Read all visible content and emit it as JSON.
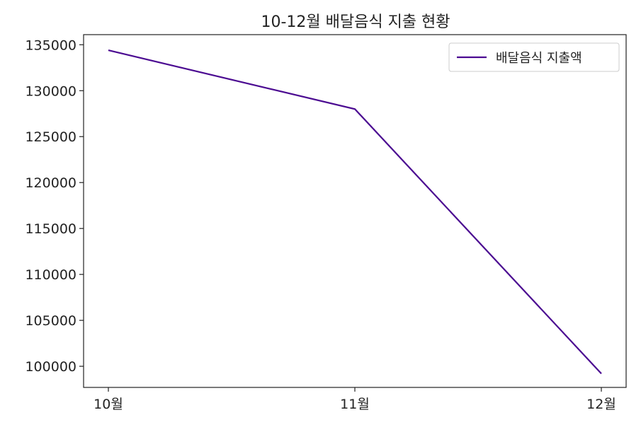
{
  "chart_data": {
    "type": "line",
    "title": "10-12월 배달음식 지출 현황",
    "xlabel": "",
    "ylabel": "",
    "categories": [
      "10월",
      "11월",
      "12월"
    ],
    "series": [
      {
        "name": "배달음식 지출액",
        "values": [
          134400,
          128000,
          99200
        ],
        "color": "#4b0a91"
      }
    ],
    "ylim": [
      97700,
      136100
    ],
    "yticks": [
      100000,
      105000,
      110000,
      115000,
      120000,
      125000,
      130000,
      135000
    ],
    "grid": false,
    "legend": "top-right"
  }
}
